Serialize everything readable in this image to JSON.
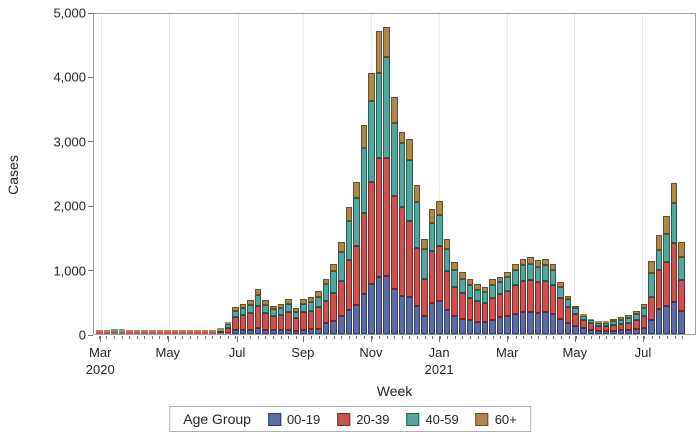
{
  "chart_data": {
    "type": "bar",
    "stacked": true,
    "title": "",
    "xlabel": "Week",
    "ylabel": "Cases",
    "ylim": [
      0,
      5000
    ],
    "grid": "vertical-only",
    "legend_position": "bottom",
    "legend_title": "Age Group",
    "yticks": [
      {
        "value": 0,
        "label": "0"
      },
      {
        "value": 1000,
        "label": "1,000"
      },
      {
        "value": 2000,
        "label": "2,000"
      },
      {
        "value": 3000,
        "label": "3,000"
      },
      {
        "value": 4000,
        "label": "4,000"
      },
      {
        "value": 5000,
        "label": "5,000"
      }
    ],
    "xticks": [
      {
        "label": "Mar",
        "year": "2020",
        "pos": 0.012
      },
      {
        "label": "May",
        "year": "",
        "pos": 0.124
      },
      {
        "label": "Jul",
        "year": "",
        "pos": 0.239
      },
      {
        "label": "Sep",
        "year": "",
        "pos": 0.348
      },
      {
        "label": "Nov",
        "year": "",
        "pos": 0.461
      },
      {
        "label": "Jan",
        "year": "2021",
        "pos": 0.574
      },
      {
        "label": "Mar",
        "year": "",
        "pos": 0.687
      },
      {
        "label": "May",
        "year": "",
        "pos": 0.799
      },
      {
        "label": "Jul",
        "year": "",
        "pos": 0.912
      }
    ],
    "categories": [
      "2020-03-01",
      "2020-03-08",
      "2020-03-15",
      "2020-03-22",
      "2020-03-29",
      "2020-04-05",
      "2020-04-12",
      "2020-04-19",
      "2020-04-26",
      "2020-05-03",
      "2020-05-10",
      "2020-05-17",
      "2020-05-24",
      "2020-05-31",
      "2020-06-07",
      "2020-06-14",
      "2020-06-21",
      "2020-06-28",
      "2020-07-05",
      "2020-07-12",
      "2020-07-19",
      "2020-07-26",
      "2020-08-02",
      "2020-08-09",
      "2020-08-16",
      "2020-08-23",
      "2020-08-30",
      "2020-09-06",
      "2020-09-13",
      "2020-09-20",
      "2020-09-27",
      "2020-10-04",
      "2020-10-11",
      "2020-10-18",
      "2020-10-25",
      "2020-11-01",
      "2020-11-08",
      "2020-11-15",
      "2020-11-22",
      "2020-11-29",
      "2020-12-06",
      "2020-12-13",
      "2020-12-20",
      "2020-12-27",
      "2021-01-03",
      "2021-01-10",
      "2021-01-17",
      "2021-01-24",
      "2021-01-31",
      "2021-02-07",
      "2021-02-14",
      "2021-02-21",
      "2021-02-28",
      "2021-03-07",
      "2021-03-14",
      "2021-03-21",
      "2021-03-28",
      "2021-04-04",
      "2021-04-11",
      "2021-04-18",
      "2021-04-25",
      "2021-05-02",
      "2021-05-09",
      "2021-05-16",
      "2021-05-23",
      "2021-05-30",
      "2021-06-06",
      "2021-06-13",
      "2021-06-20",
      "2021-06-27",
      "2021-07-04",
      "2021-07-11",
      "2021-07-18",
      "2021-07-25",
      "2021-08-01",
      "2021-08-08",
      "2021-08-15",
      "2021-08-22"
    ],
    "series": [
      {
        "name": "00-19",
        "color": "#5C6DA6",
        "border": "#2E3D68",
        "values": [
          1,
          5,
          8,
          7,
          5,
          4,
          3,
          3,
          2,
          2,
          1,
          1,
          1,
          2,
          4,
          6,
          11,
          22,
          55,
          60,
          70,
          90,
          70,
          60,
          60,
          70,
          50,
          70,
          75,
          85,
          165,
          210,
          275,
          380,
          450,
          620,
          775,
          890,
          905,
          705,
          600,
          580,
          440,
          285,
          490,
          520,
          370,
          280,
          240,
          215,
          195,
          185,
          215,
          260,
          280,
          320,
          340,
          350,
          335,
          340,
          320,
          235,
          175,
          130,
          90,
          70,
          45,
          45,
          50,
          55,
          60,
          75,
          100,
          225,
          395,
          445,
          500,
          365
        ]
      },
      {
        "name": "20-39",
        "color": "#CC5151",
        "border": "#7C2726",
        "values": [
          3,
          14,
          24,
          21,
          16,
          13,
          10,
          8,
          6,
          6,
          5,
          4,
          5,
          8,
          13,
          21,
          38,
          78,
          210,
          235,
          260,
          355,
          260,
          220,
          235,
          270,
          205,
          270,
          285,
          335,
          345,
          430,
          560,
          775,
          930,
          1275,
          1595,
          1860,
          1840,
          1445,
          1390,
          1190,
          910,
          580,
          800,
          855,
          610,
          460,
          400,
          355,
          320,
          300,
          355,
          365,
          400,
          450,
          485,
          495,
          470,
          485,
          450,
          330,
          245,
          180,
          130,
          95,
          80,
          80,
          90,
          100,
          115,
          140,
          185,
          350,
          600,
          680,
          915,
          480
        ]
      },
      {
        "name": "40-59",
        "color": "#56A59B",
        "border": "#1F5F56",
        "values": [
          3,
          14,
          22,
          19,
          15,
          12,
          9,
          7,
          6,
          4,
          4,
          3,
          4,
          5,
          8,
          14,
          25,
          52,
          100,
          115,
          125,
          170,
          125,
          105,
          115,
          130,
          95,
          130,
          140,
          160,
          270,
          340,
          445,
          615,
          740,
          1015,
          1265,
          1335,
          1580,
          1145,
          1000,
          945,
          720,
          460,
          450,
          480,
          345,
          260,
          225,
          200,
          180,
          170,
          200,
          185,
          205,
          230,
          250,
          250,
          240,
          250,
          230,
          170,
          125,
          95,
          65,
          50,
          55,
          55,
          60,
          70,
          75,
          95,
          120,
          375,
          315,
          445,
          630,
          355
        ]
      },
      {
        "name": "60+",
        "color": "#AC8751",
        "border": "#6B4F21",
        "values": [
          3,
          12,
          21,
          18,
          14,
          11,
          8,
          7,
          6,
          3,
          2,
          2,
          2,
          3,
          5,
          9,
          16,
          33,
          55,
          60,
          70,
          90,
          70,
          60,
          60,
          70,
          55,
          70,
          75,
          85,
          85,
          120,
          160,
          220,
          260,
          360,
          450,
          655,
          475,
          405,
          160,
          335,
          260,
          165,
          210,
          225,
          165,
          125,
          105,
          95,
          90,
          80,
          95,
          80,
          85,
          100,
          105,
          110,
          105,
          105,
          100,
          75,
          55,
          40,
          30,
          20,
          30,
          30,
          35,
          35,
          40,
          55,
          65,
          190,
          235,
          275,
          315,
          230
        ]
      }
    ],
    "frame_color": "#9CA1A6",
    "gridline_color": "#E8EAEC"
  }
}
